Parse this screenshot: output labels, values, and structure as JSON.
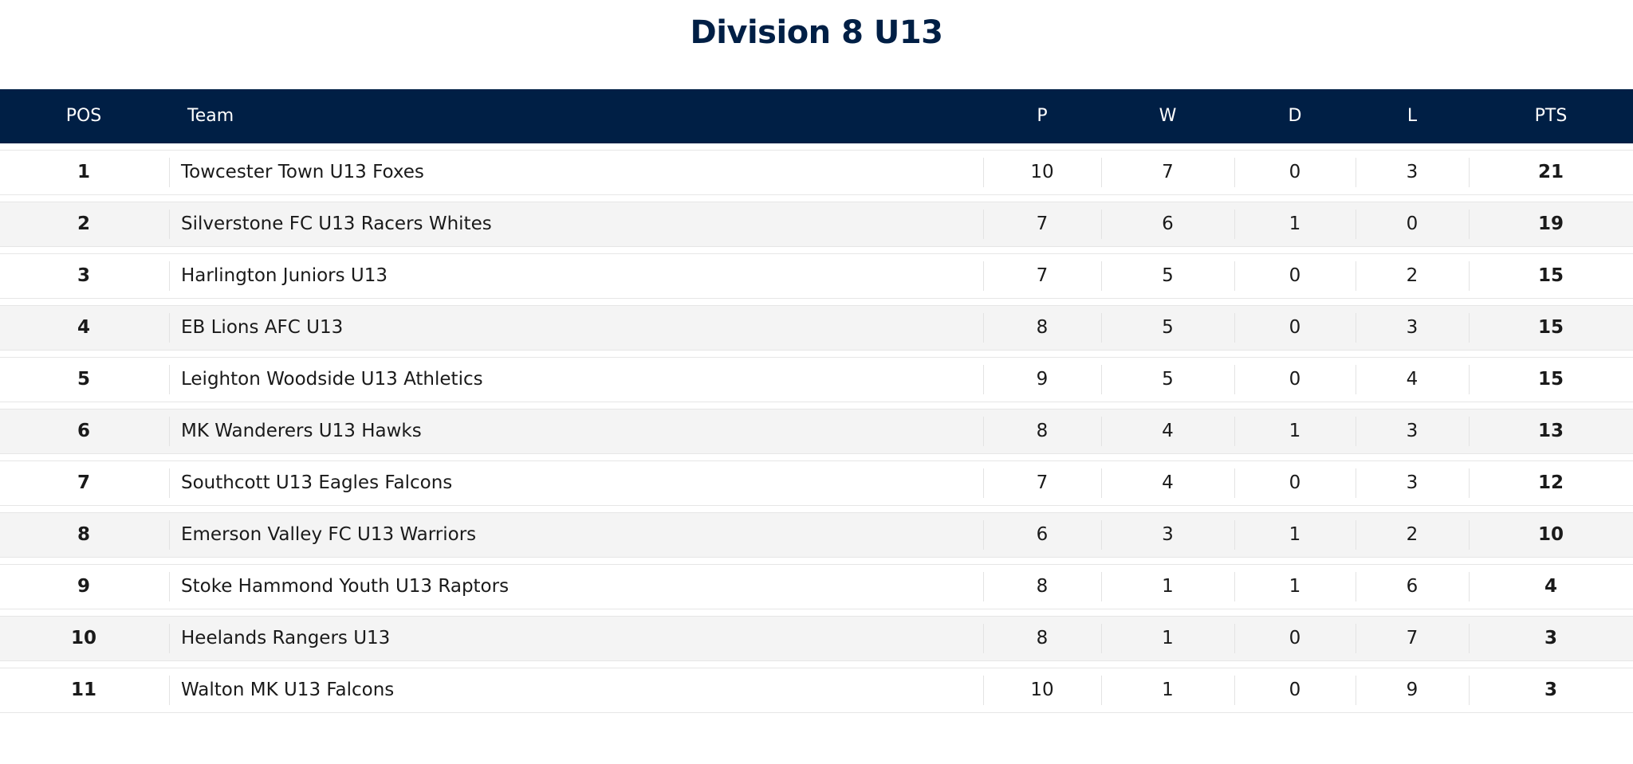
{
  "page": {
    "title": "Division 8 U13"
  },
  "table": {
    "headers": {
      "pos": "POS",
      "team": "Team",
      "p": "P",
      "w": "W",
      "d": "D",
      "l": "L",
      "pts": "PTS"
    },
    "rows": [
      {
        "pos": "1",
        "team": "Towcester Town U13 Foxes",
        "p": "10",
        "w": "7",
        "d": "0",
        "l": "3",
        "pts": "21"
      },
      {
        "pos": "2",
        "team": "Silverstone FC U13 Racers Whites",
        "p": "7",
        "w": "6",
        "d": "1",
        "l": "0",
        "pts": "19"
      },
      {
        "pos": "3",
        "team": "Harlington Juniors U13",
        "p": "7",
        "w": "5",
        "d": "0",
        "l": "2",
        "pts": "15"
      },
      {
        "pos": "4",
        "team": "EB Lions AFC U13",
        "p": "8",
        "w": "5",
        "d": "0",
        "l": "3",
        "pts": "15"
      },
      {
        "pos": "5",
        "team": "Leighton Woodside U13 Athletics",
        "p": "9",
        "w": "5",
        "d": "0",
        "l": "4",
        "pts": "15"
      },
      {
        "pos": "6",
        "team": "MK Wanderers U13 Hawks",
        "p": "8",
        "w": "4",
        "d": "1",
        "l": "3",
        "pts": "13"
      },
      {
        "pos": "7",
        "team": "Southcott U13 Eagles Falcons",
        "p": "7",
        "w": "4",
        "d": "0",
        "l": "3",
        "pts": "12"
      },
      {
        "pos": "8",
        "team": "Emerson Valley FC U13 Warriors",
        "p": "6",
        "w": "3",
        "d": "1",
        "l": "2",
        "pts": "10"
      },
      {
        "pos": "9",
        "team": "Stoke Hammond Youth U13 Raptors",
        "p": "8",
        "w": "1",
        "d": "1",
        "l": "6",
        "pts": "4"
      },
      {
        "pos": "10",
        "team": "Heelands Rangers U13",
        "p": "8",
        "w": "1",
        "d": "0",
        "l": "7",
        "pts": "3"
      },
      {
        "pos": "11",
        "team": "Walton MK U13 Falcons",
        "p": "10",
        "w": "1",
        "d": "0",
        "l": "9",
        "pts": "3"
      }
    ]
  },
  "colors": {
    "header_bg": "#001f45",
    "title": "#001f45",
    "row_alt_bg": "#f4f4f4"
  }
}
